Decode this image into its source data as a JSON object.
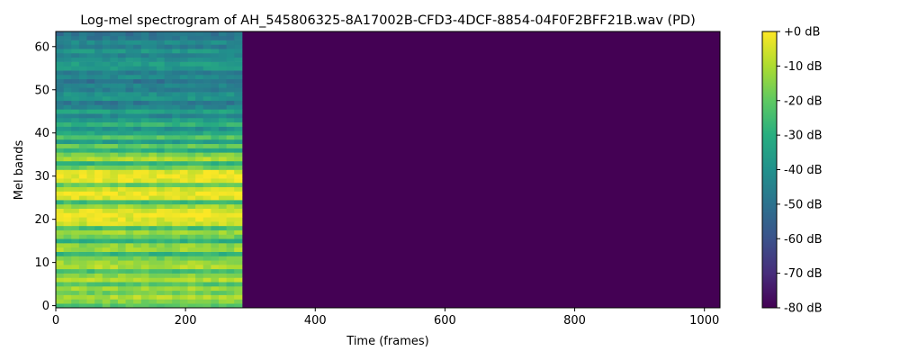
{
  "chart_data": {
    "type": "heatmap",
    "title": "Log-mel spectrogram of AH_545806325-8A17002B-CFD3-4DCF-8854-04F0F2BFF21B.wav (PD)",
    "xlabel": "Time (frames)",
    "ylabel": "Mel bands",
    "xlim": [
      0,
      1024
    ],
    "ylim": [
      -0.5,
      63.5
    ],
    "x_ticks": [
      0,
      200,
      400,
      600,
      800,
      1000
    ],
    "y_ticks": [
      0,
      10,
      20,
      30,
      40,
      50,
      60
    ],
    "colorbar": {
      "colormap": "viridis",
      "range": [
        -80,
        0
      ],
      "unit": "dB",
      "ticks": [
        0,
        -10,
        -20,
        -30,
        -40,
        -50,
        -60,
        -70,
        -80
      ],
      "tick_labels": [
        "+0 dB",
        "-10 dB",
        "-20 dB",
        "-30 dB",
        "-40 dB",
        "-50 dB",
        "-60 dB",
        "-70 dB",
        "-80 dB"
      ]
    },
    "signal_end_frame": 287,
    "silence_value_db": -80,
    "band_profile_db": [
      -22,
      -15,
      -10,
      -18,
      -12,
      -22,
      -10,
      -14,
      -24,
      -10,
      -12,
      -18,
      -28,
      -12,
      -14,
      -30,
      -18,
      -12,
      -24,
      -6,
      -4,
      -2,
      -4,
      -12,
      -26,
      -4,
      -2,
      -6,
      -20,
      -4,
      -2,
      -4,
      -18,
      -28,
      -10,
      -16,
      -30,
      -20,
      -36,
      -22,
      -32,
      -40,
      -28,
      -36,
      -44,
      -34,
      -44,
      -48,
      -38,
      -40,
      -46,
      -44,
      -50,
      -42,
      -46,
      -38,
      -36,
      -40,
      -44,
      -38,
      -46,
      -42,
      -48,
      -50
    ]
  }
}
